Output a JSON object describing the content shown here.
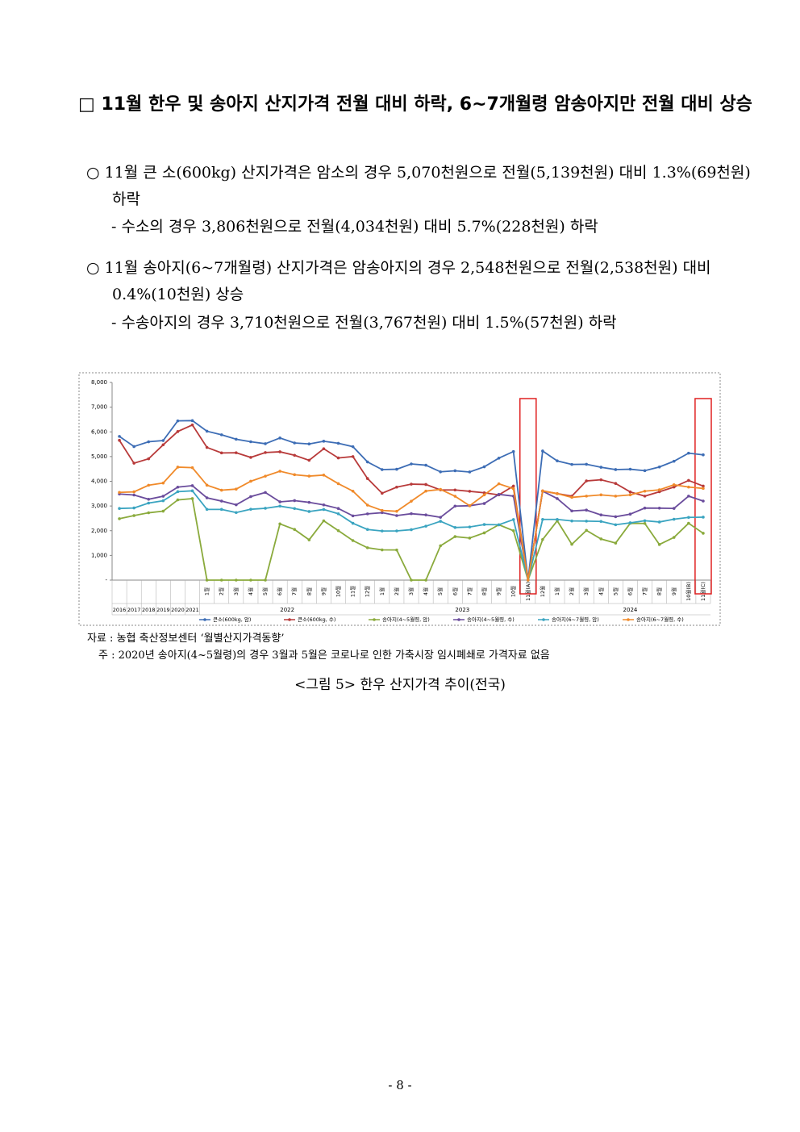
{
  "heading": "□ 11월 한우 및 송아지 산지가격 전월 대비 하락, 6~7개월령 암송아지만 전월 대비 상승",
  "bullets": [
    {
      "text": "○ 11월 큰 소(600kg) 산지가격은 암소의 경우 5,070천원으로 전월(5,139천원) 대비 1.3%(69천원) 하락",
      "sub": "- 수소의 경우 3,806천원으로 전월(4,034천원) 대비 5.7%(228천원) 하락"
    },
    {
      "text": "○ 11월 송아지(6~7개월령) 산지가격은 암송아지의 경우 2,548천원으로 전월(2,538천원) 대비 0.4%(10천원) 상승",
      "sub": "- 수송아지의 경우 3,710천원으로 전월(3,767천원) 대비 1.5%(57천원) 하락"
    }
  ],
  "chart_data": {
    "type": "line",
    "categories": [
      "2016",
      "2017",
      "2018",
      "2019",
      "2020",
      "2021",
      "1월",
      "2월",
      "3월",
      "4월",
      "5월",
      "6월",
      "7월",
      "8월",
      "9월",
      "10월",
      "11월",
      "12월",
      "1월",
      "2월",
      "3월",
      "4월",
      "5월",
      "6월",
      "7월",
      "8월",
      "9월",
      "10월",
      "11월(A)",
      "12월",
      "1월",
      "2월",
      "3월",
      "4월",
      "5월",
      "6월",
      "7월",
      "8월",
      "9월",
      "10월(B)",
      "11월(C)"
    ],
    "year_groups": [
      "2022",
      "2023",
      "2024"
    ],
    "ylim": [
      0,
      8000
    ],
    "yticks": [
      {
        "value": 0,
        "label": "-"
      },
      {
        "value": 1000,
        "label": "1,000"
      },
      {
        "value": 2000,
        "label": "2,000"
      },
      {
        "value": 3000,
        "label": "3,000"
      },
      {
        "value": 4000,
        "label": "4,000"
      },
      {
        "value": 5000,
        "label": "5,000"
      },
      {
        "value": 6000,
        "label": "6,000"
      },
      {
        "value": 7000,
        "label": "7,000"
      },
      {
        "value": 8000,
        "label": "8,000"
      }
    ],
    "series": [
      {
        "name": "큰소(600kg, 암)",
        "color": "#3d6db5",
        "values": [
          5816,
          5406,
          5599,
          5648,
          6445,
          6455,
          6026,
          5882,
          5701,
          5600,
          5521,
          5753,
          5551,
          5511,
          5621,
          5538,
          5400,
          4782,
          4473,
          4487,
          4702,
          4651,
          4383,
          4425,
          4376,
          4586,
          4937,
          5204,
          0,
          5226,
          4825,
          4682,
          4689,
          4568,
          4474,
          4488,
          4429,
          4580,
          4812,
          5139,
          5070
        ]
      },
      {
        "name": "큰소(600kg, 수)",
        "color": "#b83a3a",
        "values": [
          5658,
          4733,
          4911,
          5476,
          6014,
          6281,
          5370,
          5148,
          5154,
          4967,
          5163,
          5193,
          5053,
          4850,
          5317,
          4944,
          5000,
          4112,
          3516,
          3763,
          3884,
          3871,
          3650,
          3649,
          3594,
          3535,
          3450,
          3806,
          0,
          3609,
          3500,
          3400,
          4015,
          4060,
          3911,
          3569,
          3400,
          3576,
          3766,
          4034,
          3806
        ]
      },
      {
        "name": "송아지(4~5월령, 암)",
        "color": "#8aaa3c",
        "values": [
          2485,
          2612,
          2725,
          2790,
          3247,
          3300,
          0,
          0,
          0,
          0,
          0,
          2276,
          2050,
          1630,
          2400,
          2003,
          1600,
          1310,
          1224,
          1220,
          0,
          0,
          1390,
          1760,
          1703,
          1911,
          2240,
          2000,
          0,
          1643,
          2400,
          1450,
          2013,
          1666,
          1499,
          2300,
          2294,
          1442,
          1730,
          2300,
          1896
        ]
      },
      {
        "name": "송아지(4~5월령, 수)",
        "color": "#6a4c9c",
        "values": [
          3485,
          3444,
          3272,
          3394,
          3763,
          3824,
          3329,
          3198,
          3048,
          3379,
          3547,
          3168,
          3217,
          3147,
          3045,
          2900,
          2600,
          2682,
          2729,
          2612,
          2688,
          2639,
          2541,
          2996,
          3010,
          3100,
          3471,
          3400,
          0,
          3600,
          3300,
          2800,
          2834,
          2639,
          2566,
          2670,
          2916,
          2913,
          2903,
          3400,
          3200
        ]
      },
      {
        "name": "송아지(6~7월령, 암)",
        "color": "#3aa4c0",
        "values": [
          2900,
          2919,
          3118,
          3212,
          3581,
          3614,
          2864,
          2862,
          2735,
          2868,
          2907,
          2994,
          2898,
          2776,
          2859,
          2686,
          2300,
          2050,
          1988,
          1991,
          2042,
          2182,
          2381,
          2129,
          2150,
          2250,
          2240,
          2450,
          0,
          2457,
          2457,
          2395,
          2388,
          2375,
          2241,
          2319,
          2404,
          2353,
          2464,
          2538,
          2548
        ]
      },
      {
        "name": "송아지(6~7월령, 수)",
        "color": "#f08a2a",
        "values": [
          3550,
          3572,
          3841,
          3930,
          4573,
          4550,
          3842,
          3640,
          3683,
          4001,
          4208,
          4407,
          4266,
          4210,
          4251,
          3904,
          3600,
          3035,
          2819,
          2786,
          3195,
          3603,
          3671,
          3394,
          3010,
          3450,
          3898,
          3700,
          0,
          3609,
          3500,
          3350,
          3400,
          3450,
          3400,
          3450,
          3600,
          3654,
          3858,
          3767,
          3710
        ]
      }
    ]
  },
  "source": "자료 : 농협 축산정보센터 ‘월별산지가격동향’",
  "note": "주 : 2020년 송아지(4~5월령)의 경우 3월과 5월은 코로나로 인한 가축시장 임시폐쇄로 가격자료 없음",
  "caption": "<그림 5> 한우 산지가격 추이(전국)",
  "page_number": "- 8 -"
}
